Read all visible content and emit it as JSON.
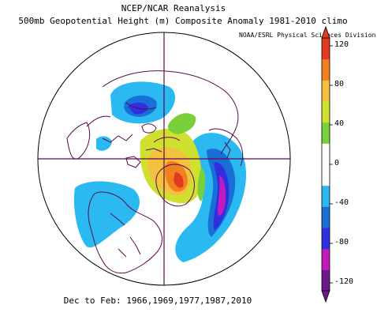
{
  "header": {
    "title_line1": "NCEP/NCAR Reanalysis",
    "title_line2": "500mb Geopotential Height (m) Composite Anomaly 1981-2010 climo",
    "credit": "NOAA/ESRL Physical Sciences Division"
  },
  "footer": {
    "caption": "Dec to Feb: 1966,1969,1977,1987,2010"
  },
  "colors": {
    "background": "#ffffff",
    "coastline": "#5c0a4a",
    "gridline": "#5c0a4a",
    "colorbar": [
      "#6a1a8c",
      "#c21bbd",
      "#2f2fe0",
      "#1a6fd6",
      "#2bb9f2",
      "#ffffff",
      "#ffffff",
      "#7ad03a",
      "#d0e030",
      "#f4c040",
      "#f08020",
      "#e03a20"
    ]
  },
  "colorbar": {
    "tick_labels": [
      "120",
      "80",
      "40",
      "0",
      "-40",
      "-80",
      "-120"
    ]
  }
}
